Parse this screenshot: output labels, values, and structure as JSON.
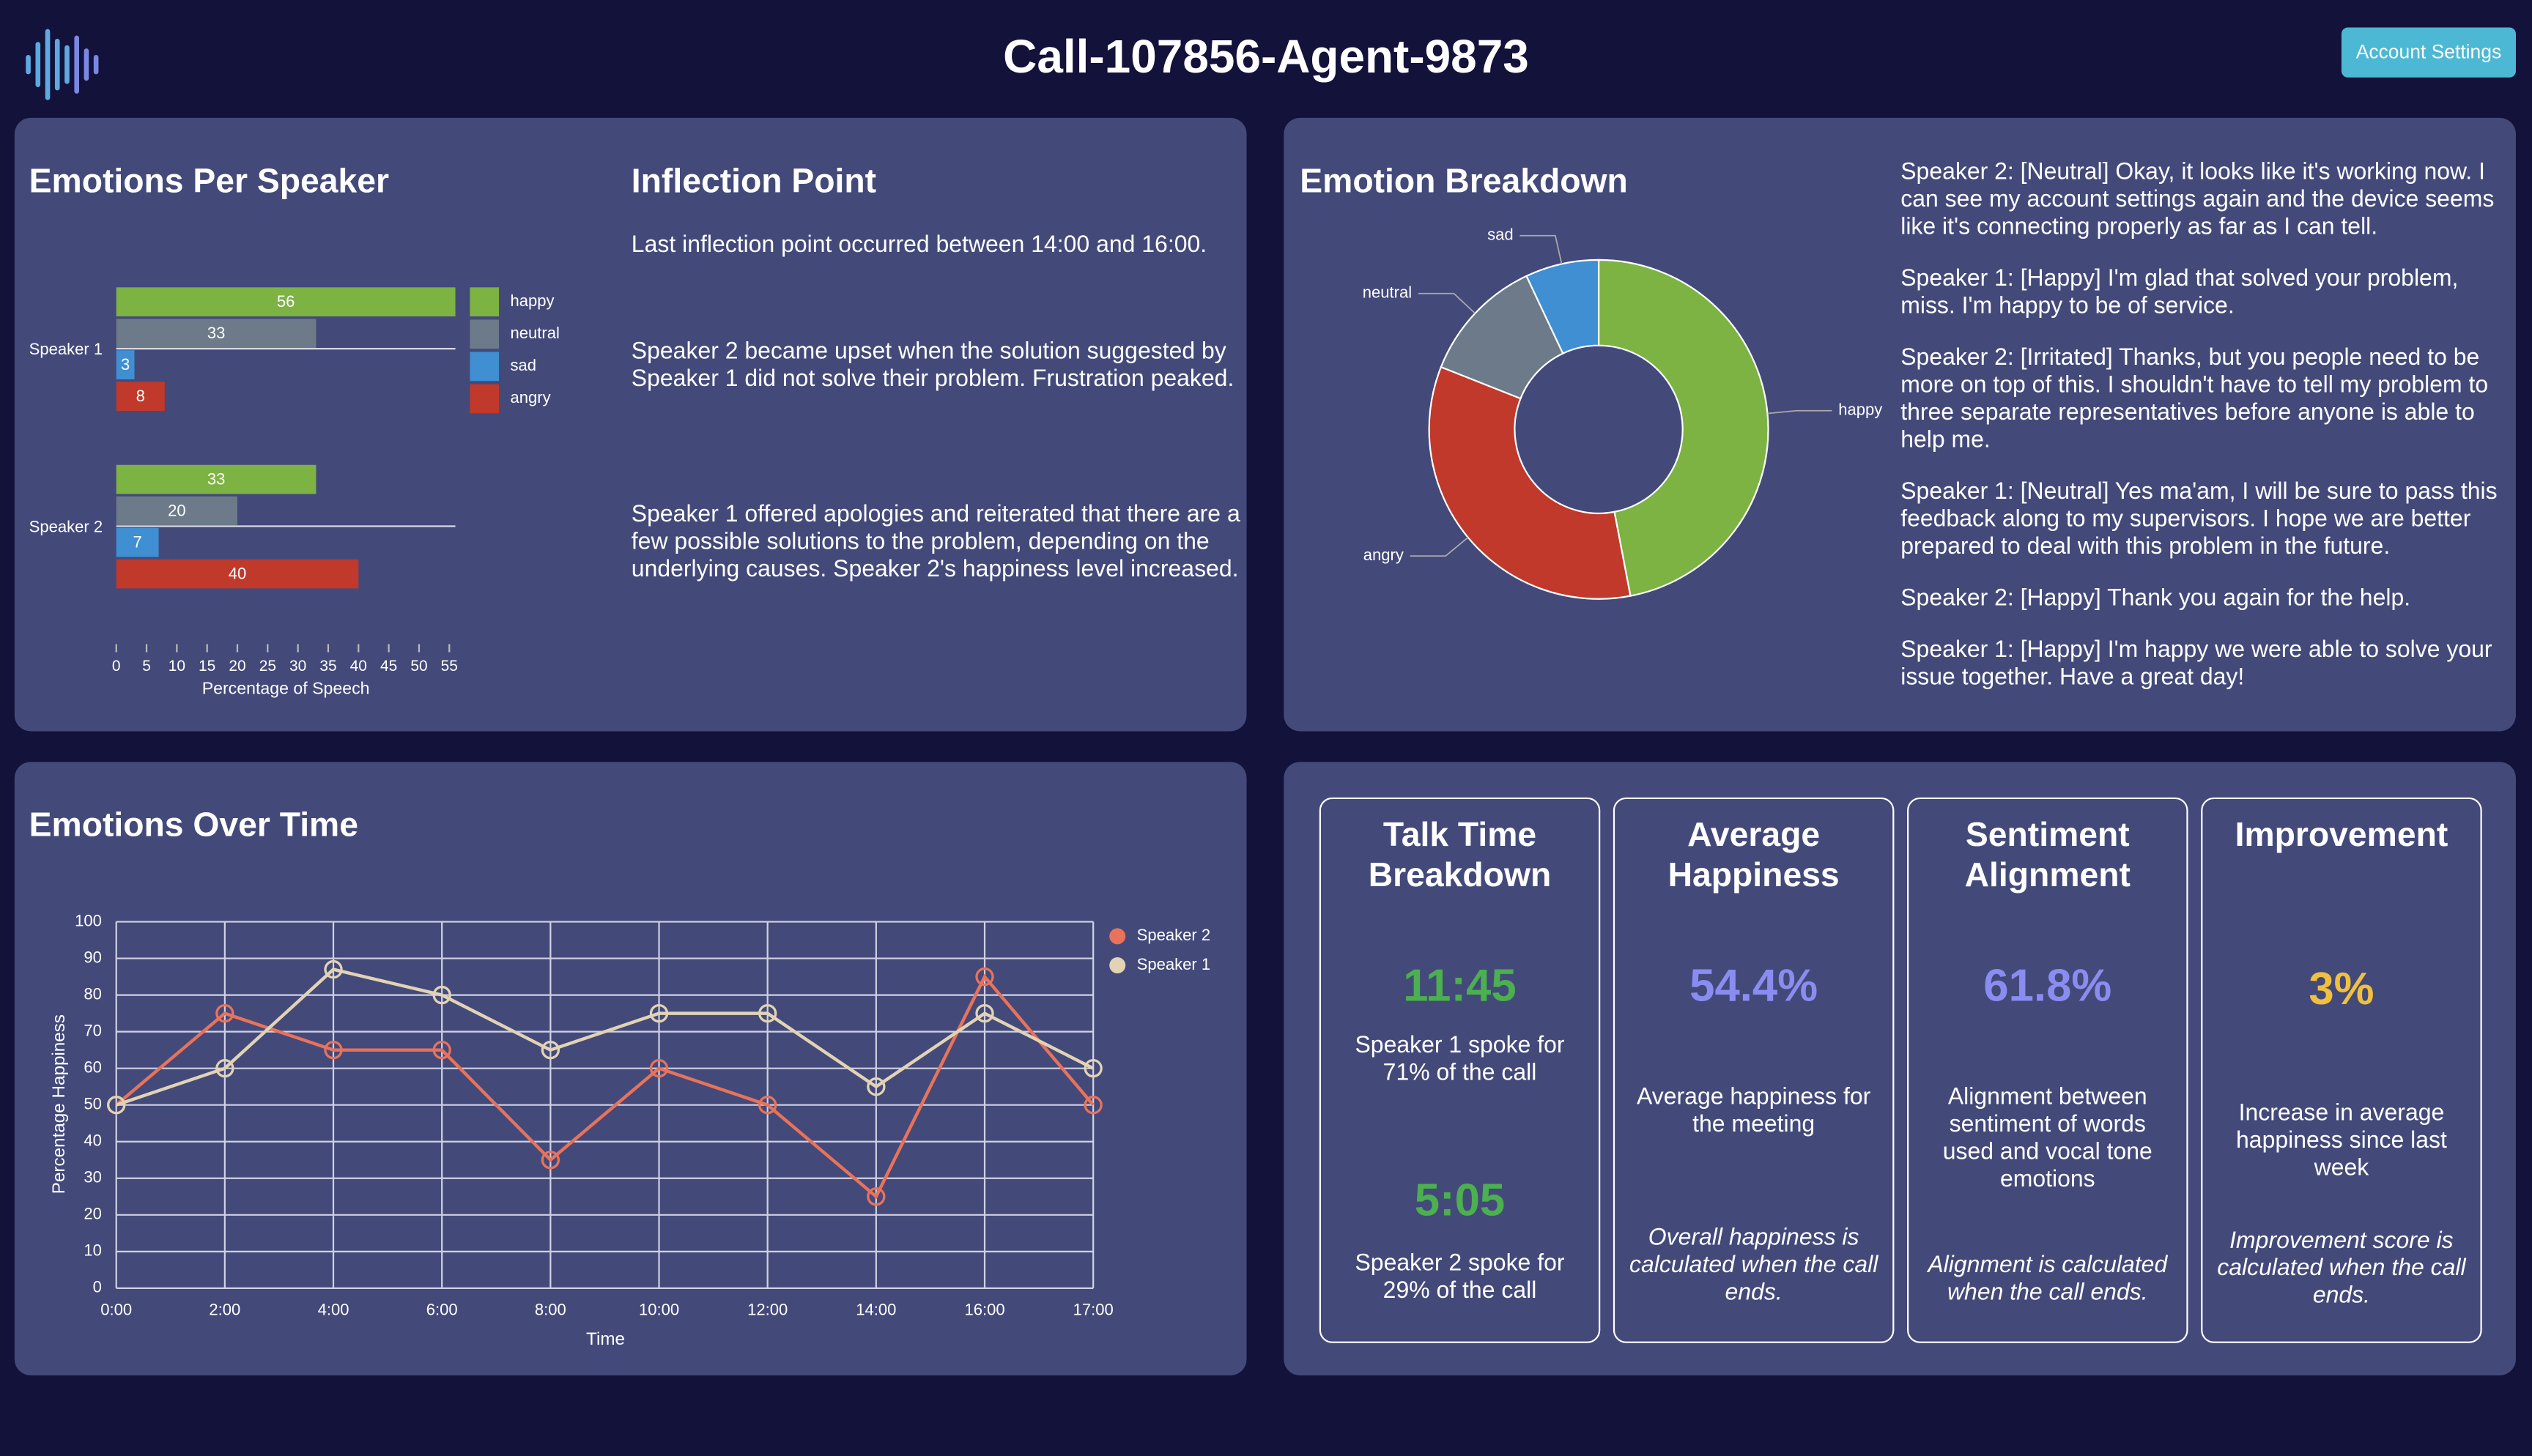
{
  "header": {
    "title": "Call-107856-Agent-9873",
    "button": "Account Settings"
  },
  "panels": {
    "emotions_title": "Emotions Per Speaker",
    "inflection": {
      "title": "Inflection Point",
      "paragraphs": [
        "Last inflection point occurred between 14:00 and 16:00.",
        "Speaker 2 became upset when the solution suggested by Speaker 1 did not solve their problem. Frustration peaked.",
        "Speaker 1 offered apologies and reiterated that there are a few possible solutions to the problem, depending on the underlying causes. Speaker 2's happiness level increased."
      ]
    },
    "breakdown_title": "Emotion Breakdown",
    "transcript": [
      "Speaker 2: [Neutral] Okay, it looks like it's working now. I can see my account settings again and the device seems like it's connecting properly as far as I can tell.",
      "Speaker 1: [Happy] I'm glad that solved your problem, miss. I'm happy to be of service.",
      "Speaker 2: [Irritated] Thanks, but you people need to be more on top of this. I shouldn't have to tell my problem to three separate representatives before anyone is able to help me.",
      "Speaker 1: [Neutral] Yes ma'am, I will be sure to pass this feedback along to my supervisors. I hope we are better prepared to deal with this problem in the future.",
      "Speaker 2: [Happy] Thank you again for the help.",
      "Speaker 1: [Happy] I'm happy we were able to solve your issue together. Have a great day!"
    ],
    "over_time_title": "Emotions Over Time"
  },
  "metrics": [
    {
      "title": "Talk Time Breakdown",
      "color": "#4caf50",
      "items": [
        {
          "value": "11:45",
          "caption": "Speaker 1 spoke for 71% of the call"
        },
        {
          "value": "5:05",
          "caption": "Speaker 2 spoke for 29% of the call"
        }
      ]
    },
    {
      "title": "Average Happiness",
      "color": "#8a8cf0",
      "items": [
        {
          "value": "54.4%",
          "caption": "Average happiness for the meeting"
        }
      ],
      "note": "Overall happiness is calculated when the call ends."
    },
    {
      "title": "Sentiment Alignment",
      "color": "#8a8cf0",
      "items": [
        {
          "value": "61.8%",
          "caption": "Alignment between sentiment of words used and vocal tone emotions"
        }
      ],
      "note": "Alignment is calculated when the call ends."
    },
    {
      "title": "Improvement",
      "color": "#f0c040",
      "items": [
        {
          "value": "3%",
          "caption": "Increase in average happiness since last week"
        }
      ],
      "note": "Improvement score is calculated when the call ends."
    }
  ],
  "chart_data": [
    {
      "type": "hbar",
      "categories": [
        "Speaker 1",
        "Speaker 2"
      ],
      "series": [
        {
          "name": "happy",
          "color": "#7cb342",
          "values": [
            56,
            33
          ]
        },
        {
          "name": "neutral",
          "color": "#6c7a89",
          "values": [
            33,
            20
          ]
        },
        {
          "name": "sad",
          "color": "#3f8fd2",
          "values": [
            3,
            7
          ]
        },
        {
          "name": "angry",
          "color": "#c0392b",
          "values": [
            8,
            40
          ]
        }
      ],
      "xlim": [
        0,
        56
      ],
      "xticks": [
        0,
        5,
        10,
        15,
        20,
        25,
        30,
        35,
        40,
        45,
        50,
        55
      ],
      "xlabel": "Percentage of Speech"
    },
    {
      "type": "donut",
      "categories": [
        "happy",
        "angry",
        "neutral",
        "sad"
      ],
      "values": [
        47,
        34,
        12,
        7
      ],
      "colors": [
        "#7cb342",
        "#c0392b",
        "#6c7a89",
        "#3f8fd2"
      ]
    },
    {
      "type": "line",
      "x": [
        "0:00",
        "2:00",
        "4:00",
        "6:00",
        "8:00",
        "10:00",
        "12:00",
        "14:00",
        "16:00",
        "17:00"
      ],
      "series": [
        {
          "name": "Speaker 2",
          "color": "#e8735a",
          "values": [
            50,
            75,
            65,
            65,
            35,
            60,
            50,
            25,
            85,
            50
          ]
        },
        {
          "name": "Speaker 1",
          "color": "#e2d3b5",
          "values": [
            50,
            60,
            87,
            80,
            65,
            75,
            75,
            55,
            75,
            60
          ]
        }
      ],
      "ylim": [
        0,
        100
      ],
      "yticks": [
        0,
        10,
        20,
        30,
        40,
        50,
        60,
        70,
        80,
        90,
        100
      ],
      "xlabel": "Time",
      "ylabel": "Percentage Happiness",
      "grid": true
    }
  ]
}
